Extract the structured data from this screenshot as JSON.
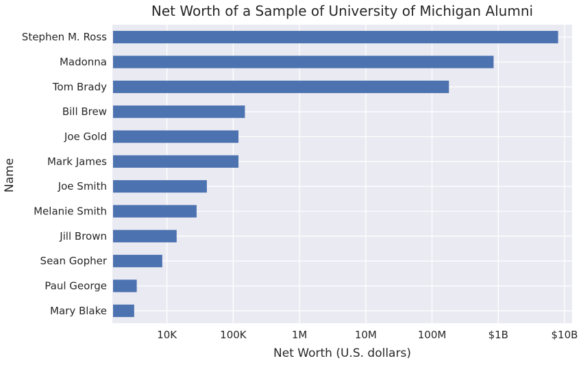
{
  "chart_data": {
    "type": "bar",
    "orientation": "horizontal",
    "title": "Net Worth of a Sample of University of Michigan Alumni",
    "xlabel": "Net Worth (U.S. dollars)",
    "ylabel": "Name",
    "x_scale": "log",
    "xlim": [
      1500,
      13000000000
    ],
    "grid": true,
    "bar_color": "#4c72b0",
    "background_color": "#eaeaf2",
    "x_ticks": [
      {
        "value": 10000,
        "label": "10K"
      },
      {
        "value": 100000,
        "label": "100K"
      },
      {
        "value": 1000000,
        "label": "1M"
      },
      {
        "value": 10000000,
        "label": "10M"
      },
      {
        "value": 100000000,
        "label": "100M"
      },
      {
        "value": 1000000000,
        "label": "$1B"
      },
      {
        "value": 10000000000,
        "label": "$10B"
      }
    ],
    "categories": [
      "Stephen M. Ross",
      "Madonna",
      "Tom Brady",
      "Bill Brew",
      "Joe Gold",
      "Mark James",
      "Joe Smith",
      "Melanie Smith",
      "Jill Brown",
      "Sean Gopher",
      "Paul George",
      "Mary Blake"
    ],
    "values": [
      8000000000,
      850000000,
      180000000,
      150000,
      120000,
      120000,
      40000,
      28000,
      14000,
      8500,
      3500,
      3200
    ]
  }
}
